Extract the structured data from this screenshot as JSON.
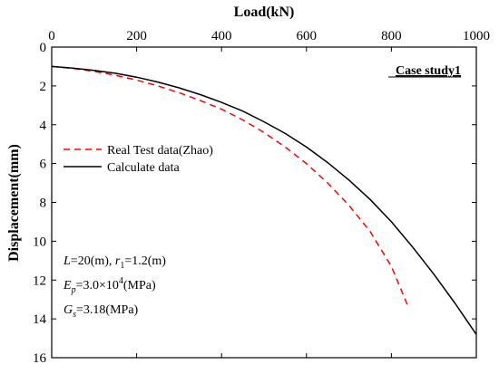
{
  "chart_data": {
    "type": "line",
    "xlabel": "Load(kN)",
    "ylabel": "Displacement(mm)",
    "xlim": [
      0,
      1000
    ],
    "ylim": [
      0,
      16
    ],
    "y_inverted": true,
    "x_axis_position": "top",
    "x_ticks": [
      "0",
      "200",
      "400",
      "600",
      "800",
      "1000"
    ],
    "y_ticks": [
      "0",
      "2",
      "4",
      "6",
      "8",
      "10",
      "12",
      "14",
      "16"
    ],
    "grid": false,
    "legend_position": "center-left",
    "annotation": "Case study1",
    "parameters": {
      "line1_L": "L",
      "line1_L_val": "=20(m), ",
      "line1_r": "r",
      "line1_r_sub": "1",
      "line1_r_val": "=1.2(m)",
      "line2_E": "E",
      "line2_E_sub": "p",
      "line2_E_val_a": "=3.0×10",
      "line2_E_sup": "4",
      "line2_E_val_b": "(MPa)",
      "line3_G": "G",
      "line3_G_sub": "s",
      "line3_G_val": "=3.18(MPa)"
    },
    "series": [
      {
        "name": "Real Test data(Zhao)",
        "color": "#ff0000",
        "style": "dashed",
        "x": [
          0,
          50,
          100,
          150,
          200,
          250,
          300,
          350,
          400,
          450,
          500,
          550,
          600,
          650,
          700,
          750,
          800,
          840
        ],
        "y": [
          1.0,
          1.1,
          1.25,
          1.45,
          1.7,
          2.0,
          2.35,
          2.75,
          3.2,
          3.75,
          4.4,
          5.15,
          6.0,
          7.0,
          8.15,
          9.5,
          11.3,
          13.4
        ]
      },
      {
        "name": "Calculate data",
        "color": "#000000",
        "style": "solid",
        "x": [
          0,
          50,
          100,
          150,
          200,
          250,
          300,
          350,
          400,
          450,
          500,
          550,
          600,
          650,
          700,
          750,
          800,
          850,
          900,
          950,
          1000
        ],
        "y": [
          1.0,
          1.08,
          1.2,
          1.35,
          1.55,
          1.8,
          2.1,
          2.45,
          2.85,
          3.3,
          3.85,
          4.45,
          5.15,
          5.95,
          6.85,
          7.85,
          9.0,
          10.3,
          11.7,
          13.2,
          14.8
        ]
      }
    ]
  }
}
